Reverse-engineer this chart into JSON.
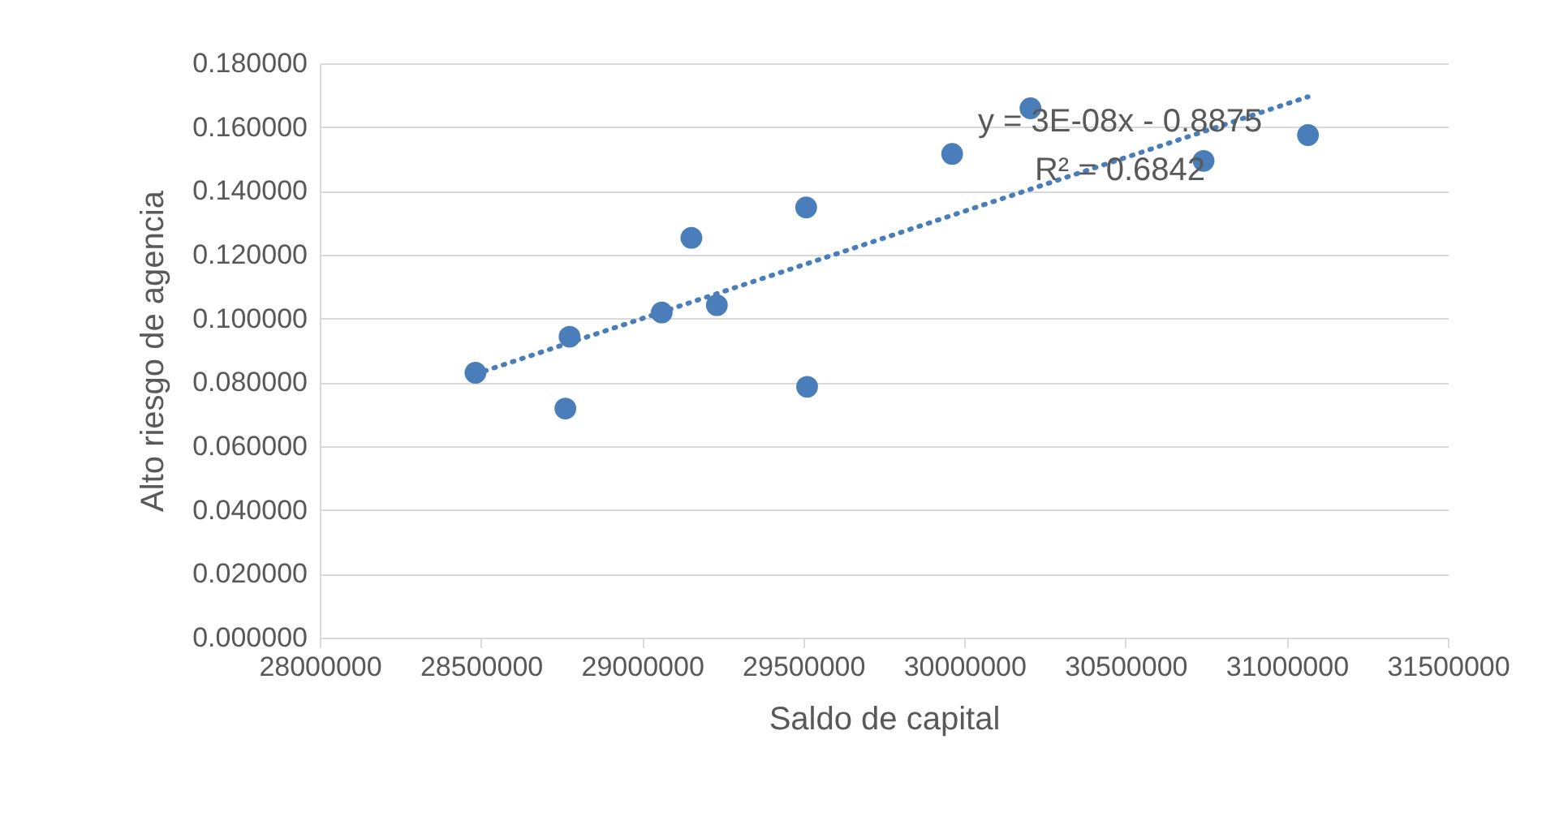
{
  "chart_data": {
    "type": "scatter",
    "xlabel": "Saldo de capital",
    "ylabel": "Alto riesgo de agencia",
    "xlim": [
      28000000,
      31500000
    ],
    "xticks": [
      28000000,
      28500000,
      29000000,
      29500000,
      30000000,
      30500000,
      31000000,
      31500000
    ],
    "ylim": [
      0,
      0.18
    ],
    "yticks": [
      {
        "value": 0,
        "label": "0.000000"
      },
      {
        "value": 0.02,
        "label": "0.020000"
      },
      {
        "value": 0.04,
        "label": "0.040000"
      },
      {
        "value": 0.06,
        "label": "0.060000"
      },
      {
        "value": 0.08,
        "label": "0.080000"
      },
      {
        "value": 0.1,
        "label": "0.100000"
      },
      {
        "value": 0.12,
        "label": "0.120000"
      },
      {
        "value": 0.14,
        "label": "0.140000"
      },
      {
        "value": 0.16,
        "label": "0.160000"
      },
      {
        "value": 0.18,
        "label": "0.180000"
      }
    ],
    "grid": "y",
    "marker": "circle",
    "series": [
      {
        "type": "scatter",
        "color": "#4a7ebb",
        "x": [
          28483000,
          28775000,
          28762000,
          29061000,
          29153000,
          29232000,
          29509000,
          29512000,
          29962000,
          30205000,
          30742000,
          31066000
        ],
        "values": [
          0.083,
          0.0943,
          0.0718,
          0.1019,
          0.1253,
          0.1042,
          0.1348,
          0.0786,
          0.1516,
          0.1659,
          0.1494,
          0.1575
        ]
      },
      {
        "type": "line",
        "color": "#4a7ebb",
        "line_style": "dotted",
        "marker": "none",
        "x": [
          28483000,
          31066000
        ],
        "values": [
          0.0826,
          0.1695
        ]
      }
    ],
    "annotations": [
      "y = 3E-08x - 0.8875",
      "R² = 0.6842"
    ]
  }
}
